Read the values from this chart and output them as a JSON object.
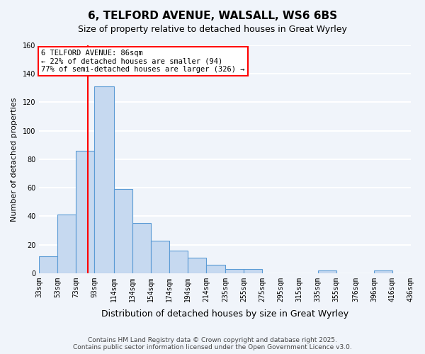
{
  "title_line1": "6, TELFORD AVENUE, WALSALL, WS6 6BS",
  "title_line2": "Size of property relative to detached houses in Great Wyrley",
  "xlabel": "Distribution of detached houses by size in Great Wyrley",
  "ylabel": "Number of detached properties",
  "bar_color": "#c6d9f0",
  "bar_edge_color": "#5b9bd5",
  "bins": [
    33,
    53,
    73,
    93,
    114,
    134,
    154,
    174,
    194,
    214,
    235,
    255,
    275,
    295,
    315,
    335,
    355,
    376,
    396,
    416,
    436
  ],
  "counts": [
    12,
    41,
    86,
    131,
    59,
    35,
    23,
    16,
    11,
    6,
    3,
    3,
    0,
    0,
    0,
    2,
    0,
    0,
    2,
    0
  ],
  "tick_labels": [
    "33sqm",
    "53sqm",
    "73sqm",
    "93sqm",
    "114sqm",
    "134sqm",
    "154sqm",
    "174sqm",
    "194sqm",
    "214sqm",
    "235sqm",
    "255sqm",
    "275sqm",
    "295sqm",
    "315sqm",
    "335sqm",
    "355sqm",
    "376sqm",
    "396sqm",
    "416sqm",
    "436sqm"
  ],
  "vline_x": 86,
  "annotation_text": "6 TELFORD AVENUE: 86sqm\n← 22% of detached houses are smaller (94)\n77% of semi-detached houses are larger (326) →",
  "annotation_box_color": "white",
  "annotation_box_edge_color": "red",
  "ylim": [
    0,
    160
  ],
  "yticks": [
    0,
    20,
    40,
    60,
    80,
    100,
    120,
    140,
    160
  ],
  "footer_text": "Contains HM Land Registry data © Crown copyright and database right 2025.\nContains public sector information licensed under the Open Government Licence v3.0.",
  "background_color": "#f0f4fa",
  "grid_color": "white"
}
